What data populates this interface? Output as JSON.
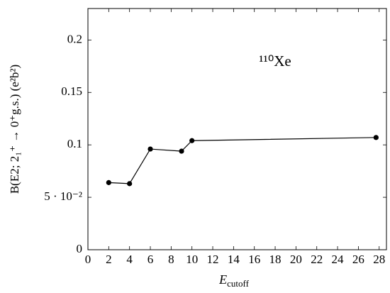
{
  "chart_data": {
    "type": "line",
    "x": [
      2,
      4,
      6,
      9,
      10,
      27.7
    ],
    "series": [
      {
        "color": "#000000",
        "values": [
          0.064,
          0.063,
          0.096,
          0.094,
          0.104,
          0.107
        ]
      }
    ],
    "xlim": [
      0,
      28.7
    ],
    "ylim": [
      0,
      0.23
    ],
    "xticks": [
      0,
      2,
      4,
      6,
      8,
      10,
      12,
      14,
      16,
      18,
      20,
      22,
      24,
      26,
      28
    ],
    "yticks": [
      0,
      {
        "value": 0.05,
        "label": "5 · 10⁻²"
      },
      0.1,
      0.15,
      0.2
    ],
    "xlabel": "E",
    "xlabel_sub": "cutoff",
    "ylabel": "B(E2; 2₁⁺ → 0⁺g.s.) (e²b²)",
    "annotation": "¹¹⁰Xe",
    "grid": false
  }
}
